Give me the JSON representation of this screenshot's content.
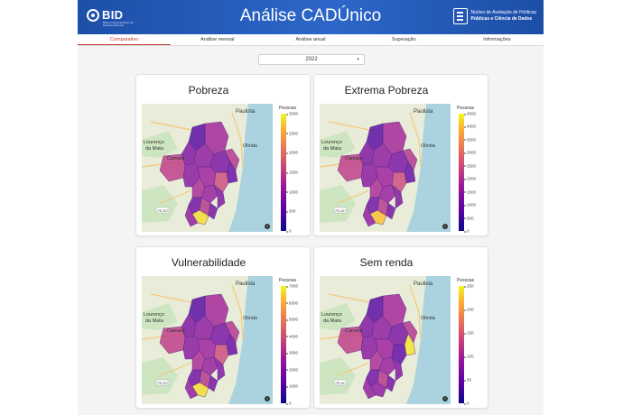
{
  "header": {
    "bid_logo": "BID",
    "bid_subtitle": "Banco Interamericano de Desenvolvimento",
    "title": "Análise CADÚnico",
    "nucleo_line1": "Núcleo de Avaliação de Políticas",
    "nucleo_line2": "Públicas e Ciência de Dados"
  },
  "tabs": [
    {
      "label": "Comparativo",
      "active": true
    },
    {
      "label": "Análise mensal",
      "active": false
    },
    {
      "label": "Análise anual",
      "active": false
    },
    {
      "label": "Superação",
      "active": false
    },
    {
      "label": "Informações",
      "active": false
    }
  ],
  "year_select": {
    "value": "2022"
  },
  "colors": {
    "accent": "#c0392b",
    "header": "#2c67c9"
  },
  "map_labels": {
    "paulista": "Paulista",
    "olinda": "Olinda",
    "lourenco": "Lourenço",
    "da_mata": "da Mata",
    "camaragibe": "Camara",
    "road": "PE-007"
  },
  "cards": [
    {
      "title": "Pobreza",
      "legend_title": "Pessoas",
      "ticks": [
        "3000",
        "2500",
        "2000",
        "1500",
        "1000",
        "500",
        "0"
      ],
      "max": 3000,
      "hotspot": "south"
    },
    {
      "title": "Extrema Pobreza",
      "legend_title": "Pessoas",
      "ticks": [
        "4500",
        "4000",
        "3500",
        "3000",
        "2500",
        "2000",
        "1500",
        "1000",
        "500",
        "0"
      ],
      "max": 4500,
      "hotspot": "south"
    },
    {
      "title": "Vulnerabilidade",
      "legend_title": "Pessoas",
      "ticks": [
        "7000",
        "6000",
        "5000",
        "4000",
        "3000",
        "2000",
        "1000",
        "0"
      ],
      "max": 7000,
      "hotspot": "south"
    },
    {
      "title": "Sem renda",
      "legend_title": "Pessoas",
      "ticks": [
        "250",
        "200",
        "150",
        "100",
        "50",
        "0"
      ],
      "max": 250,
      "hotspot": "east"
    }
  ]
}
